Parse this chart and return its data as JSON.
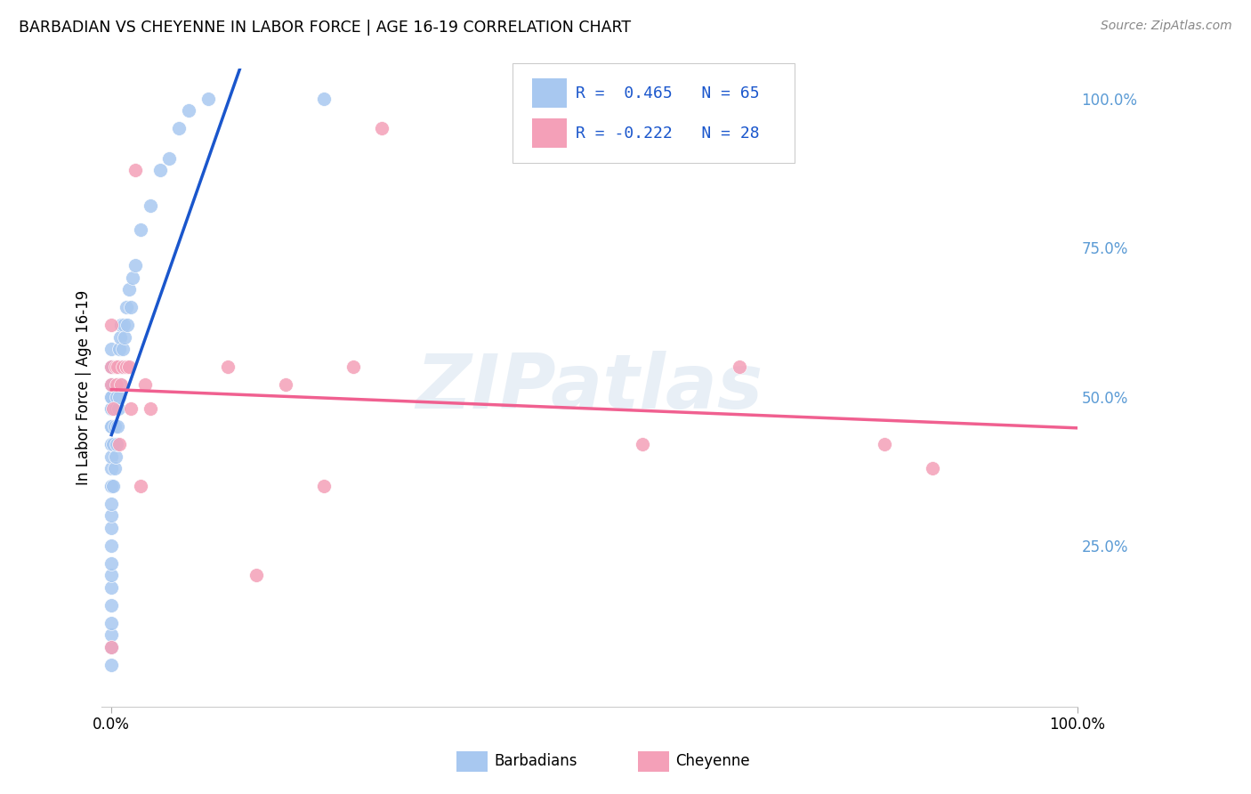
{
  "title": "BARBADIAN VS CHEYENNE IN LABOR FORCE | AGE 16-19 CORRELATION CHART",
  "source": "Source: ZipAtlas.com",
  "ylabel": "In Labor Force | Age 16-19",
  "watermark": "ZIPatlas",
  "legend_barbadian_label": "Barbadians",
  "legend_cheyenne_label": "Cheyenne",
  "legend_r_barbadian": "R =  0.465",
  "legend_n_barbadian": "N = 65",
  "legend_r_cheyenne": "R = -0.222",
  "legend_n_cheyenne": "N = 28",
  "barbadian_color": "#a8c8f0",
  "cheyenne_color": "#f4a0b8",
  "barbadian_line_color": "#1a56cc",
  "cheyenne_line_color": "#f06090",
  "background_color": "#ffffff",
  "grid_color": "#d8d8e8",
  "right_tick_color": "#5b9bd5",
  "ytick_right_labels": [
    "100.0%",
    "75.0%",
    "50.0%",
    "25.0%"
  ],
  "ytick_right_values": [
    1.0,
    0.75,
    0.5,
    0.25
  ],
  "barbadian_x": [
    0.0,
    0.0,
    0.0,
    0.0,
    0.0,
    0.0,
    0.0,
    0.0,
    0.0,
    0.0,
    0.0,
    0.0,
    0.0,
    0.0,
    0.0,
    0.0,
    0.0,
    0.0,
    0.0,
    0.0,
    0.0,
    0.0,
    0.0,
    0.0,
    0.0,
    0.0,
    0.0,
    0.0,
    0.0,
    0.0,
    0.002,
    0.002,
    0.003,
    0.003,
    0.004,
    0.004,
    0.005,
    0.005,
    0.006,
    0.006,
    0.007,
    0.007,
    0.008,
    0.008,
    0.009,
    0.009,
    0.01,
    0.01,
    0.012,
    0.013,
    0.014,
    0.015,
    0.016,
    0.018,
    0.02,
    0.022,
    0.025,
    0.03,
    0.04,
    0.05,
    0.06,
    0.07,
    0.08,
    0.1,
    0.22
  ],
  "barbadian_y": [
    0.05,
    0.08,
    0.1,
    0.12,
    0.15,
    0.18,
    0.2,
    0.22,
    0.25,
    0.28,
    0.3,
    0.32,
    0.35,
    0.35,
    0.38,
    0.4,
    0.42,
    0.42,
    0.45,
    0.45,
    0.48,
    0.48,
    0.5,
    0.5,
    0.5,
    0.52,
    0.52,
    0.55,
    0.55,
    0.58,
    0.35,
    0.42,
    0.38,
    0.45,
    0.4,
    0.48,
    0.42,
    0.5,
    0.45,
    0.52,
    0.48,
    0.55,
    0.5,
    0.58,
    0.52,
    0.6,
    0.55,
    0.62,
    0.58,
    0.62,
    0.6,
    0.65,
    0.62,
    0.68,
    0.65,
    0.7,
    0.72,
    0.78,
    0.82,
    0.88,
    0.9,
    0.95,
    0.98,
    1.0,
    1.0
  ],
  "cheyenne_x": [
    0.0,
    0.0,
    0.0,
    0.0,
    0.002,
    0.004,
    0.005,
    0.006,
    0.008,
    0.01,
    0.012,
    0.015,
    0.018,
    0.02,
    0.025,
    0.03,
    0.035,
    0.04,
    0.12,
    0.15,
    0.18,
    0.22,
    0.25,
    0.28,
    0.55,
    0.65,
    0.8,
    0.85
  ],
  "cheyenne_y": [
    0.08,
    0.55,
    0.52,
    0.62,
    0.48,
    0.55,
    0.52,
    0.55,
    0.42,
    0.52,
    0.55,
    0.55,
    0.55,
    0.48,
    0.88,
    0.35,
    0.52,
    0.48,
    0.55,
    0.2,
    0.52,
    0.35,
    0.55,
    0.95,
    0.42,
    0.55,
    0.42,
    0.38
  ]
}
